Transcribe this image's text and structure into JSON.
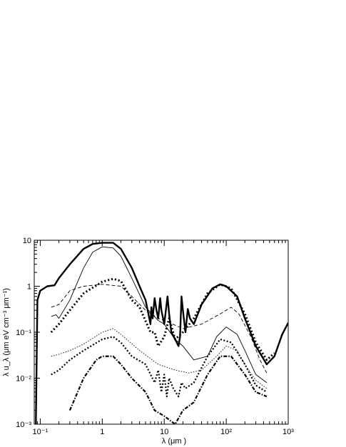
{
  "chart_data": {
    "type": "line",
    "title": "",
    "xlabel": "λ (μm )",
    "ylabel": "λ u_λ (μm eV cm⁻³ μm⁻¹)",
    "xscale": "log",
    "yscale": "log",
    "xlim": [
      0.08,
      1000
    ],
    "ylim": [
      0.001,
      10
    ],
    "grid": false,
    "legend": "none",
    "x_ticks": [
      {
        "value": 0.1,
        "label": "10⁻¹"
      },
      {
        "value": 1,
        "label": "1"
      },
      {
        "value": 10,
        "label": "10"
      },
      {
        "value": 100,
        "label": "10²"
      },
      {
        "value": 1000,
        "label": "10³"
      }
    ],
    "y_ticks": [
      {
        "value": 0.001,
        "label": "10⁻³"
      },
      {
        "value": 0.01,
        "label": "10⁻²"
      },
      {
        "value": 0.1,
        "label": "10⁻¹"
      },
      {
        "value": 1,
        "label": "1"
      },
      {
        "value": 10,
        "label": "10"
      }
    ],
    "series": [
      {
        "style": "thick-solid",
        "points": [
          [
            0.085,
            0.001
          ],
          [
            0.09,
            0.5
          ],
          [
            0.1,
            0.8
          ],
          [
            0.13,
            1.0
          ],
          [
            0.17,
            1.05
          ],
          [
            0.2,
            1.5
          ],
          [
            0.3,
            3.0
          ],
          [
            0.5,
            6.5
          ],
          [
            0.7,
            8.3
          ],
          [
            1.0,
            8.8
          ],
          [
            1.5,
            8.8
          ],
          [
            2.0,
            6.5
          ],
          [
            3.0,
            2.5
          ],
          [
            4.0,
            1.0
          ],
          [
            5.0,
            0.5
          ],
          [
            6.0,
            0.15
          ],
          [
            6.2,
            0.35
          ],
          [
            6.5,
            0.2
          ],
          [
            7.0,
            0.55
          ],
          [
            7.5,
            0.3
          ],
          [
            8.0,
            0.2
          ],
          [
            8.6,
            0.55
          ],
          [
            9.0,
            0.3
          ],
          [
            10.0,
            0.15
          ],
          [
            11.3,
            0.6
          ],
          [
            12.0,
            0.25
          ],
          [
            13.0,
            0.1
          ],
          [
            15.0,
            0.07
          ],
          [
            17.0,
            0.05
          ],
          [
            18.0,
            0.08
          ],
          [
            19.0,
            0.6
          ],
          [
            20.0,
            0.3
          ],
          [
            22.0,
            0.1
          ],
          [
            24.0,
            0.32
          ],
          [
            26.0,
            0.2
          ],
          [
            30.0,
            0.15
          ],
          [
            40.0,
            0.4
          ],
          [
            60.0,
            0.9
          ],
          [
            80.0,
            1.1
          ],
          [
            100.0,
            1.0
          ],
          [
            150.0,
            0.6
          ],
          [
            200.0,
            0.2
          ],
          [
            300.0,
            0.05
          ],
          [
            450.0,
            0.02
          ],
          [
            600.0,
            0.03
          ],
          [
            800.0,
            0.09
          ],
          [
            1000.0,
            0.16
          ]
        ]
      },
      {
        "style": "thin-solid",
        "points": [
          [
            0.15,
            0.22
          ],
          [
            0.18,
            0.24
          ],
          [
            0.2,
            0.2
          ],
          [
            0.3,
            0.5
          ],
          [
            0.5,
            2.5
          ],
          [
            0.7,
            5.5
          ],
          [
            1.0,
            7.2
          ],
          [
            1.5,
            6.8
          ],
          [
            2.0,
            4.5
          ],
          [
            3.0,
            1.5
          ],
          [
            5.0,
            0.35
          ],
          [
            8.0,
            0.18
          ],
          [
            10.0,
            0.15
          ],
          [
            15.0,
            0.07
          ],
          [
            20.0,
            0.05
          ],
          [
            30.0,
            0.025
          ],
          [
            50.0,
            0.03
          ],
          [
            70.0,
            0.08
          ],
          [
            100.0,
            0.13
          ],
          [
            150.0,
            0.09
          ],
          [
            200.0,
            0.04
          ],
          [
            300.0,
            0.012
          ],
          [
            450.0,
            0.008
          ]
        ]
      },
      {
        "style": "thick-dotted",
        "points": [
          [
            0.15,
            0.1
          ],
          [
            0.2,
            0.15
          ],
          [
            0.3,
            0.3
          ],
          [
            0.5,
            0.7
          ],
          [
            1.0,
            1.25
          ],
          [
            1.5,
            1.45
          ],
          [
            2.0,
            1.3
          ],
          [
            3.0,
            0.5
          ],
          [
            4.0,
            0.35
          ],
          [
            6.0,
            0.1
          ],
          [
            7.0,
            0.1
          ],
          [
            8.0,
            0.05
          ],
          [
            10.0,
            0.08
          ],
          [
            12.0,
            0.2
          ],
          [
            15.0,
            0.07
          ],
          [
            20.0,
            0.1
          ],
          [
            30.0,
            0.2
          ],
          [
            50.0,
            0.7
          ],
          [
            80.0,
            1.1
          ],
          [
            120.0,
            0.9
          ],
          [
            200.0,
            0.25
          ],
          [
            300.0,
            0.06
          ],
          [
            450.0,
            0.025
          ],
          [
            600.0,
            0.035
          ]
        ]
      },
      {
        "style": "dashed",
        "points": [
          [
            0.15,
            0.35
          ],
          [
            0.2,
            0.4
          ],
          [
            0.3,
            0.8
          ],
          [
            0.5,
            1.0
          ],
          [
            1.0,
            1.1
          ],
          [
            2.0,
            1.0
          ],
          [
            3.0,
            0.6
          ],
          [
            5.0,
            0.3
          ],
          [
            8.0,
            0.2
          ],
          [
            10.0,
            0.18
          ],
          [
            20.0,
            0.12
          ],
          [
            40.0,
            0.15
          ],
          [
            80.0,
            0.25
          ],
          [
            120.0,
            0.35
          ],
          [
            160.0,
            0.25
          ],
          [
            250.0,
            0.08
          ],
          [
            350.0,
            0.025
          ],
          [
            450.0,
            0.013
          ]
        ]
      },
      {
        "style": "thin-dotted",
        "points": [
          [
            0.15,
            0.03
          ],
          [
            0.2,
            0.033
          ],
          [
            0.3,
            0.04
          ],
          [
            0.5,
            0.055
          ],
          [
            1.0,
            0.1
          ],
          [
            1.5,
            0.12
          ],
          [
            2.0,
            0.09
          ],
          [
            4.0,
            0.04
          ],
          [
            8.0,
            0.02
          ],
          [
            15.0,
            0.015
          ],
          [
            25.0,
            0.013
          ],
          [
            40.0,
            0.015
          ],
          [
            70.0,
            0.03
          ],
          [
            100.0,
            0.05
          ],
          [
            150.0,
            0.04
          ],
          [
            200.0,
            0.02
          ],
          [
            300.0,
            0.009
          ],
          [
            450.0,
            0.006
          ]
        ]
      },
      {
        "style": "medium-dotted",
        "points": [
          [
            0.15,
            0.012
          ],
          [
            0.2,
            0.015
          ],
          [
            0.3,
            0.025
          ],
          [
            0.5,
            0.04
          ],
          [
            1.0,
            0.07
          ],
          [
            1.5,
            0.08
          ],
          [
            2.0,
            0.06
          ],
          [
            3.0,
            0.03
          ],
          [
            5.0,
            0.02
          ],
          [
            7.0,
            0.008
          ],
          [
            8.0,
            0.015
          ],
          [
            9.0,
            0.005
          ],
          [
            10.0,
            0.012
          ],
          [
            11.0,
            0.004
          ],
          [
            12.0,
            0.01
          ],
          [
            14.0,
            0.006
          ],
          [
            17.0,
            0.004
          ],
          [
            19.0,
            0.008
          ],
          [
            22.0,
            0.006
          ],
          [
            30.0,
            0.008
          ],
          [
            50.0,
            0.03
          ],
          [
            80.0,
            0.07
          ],
          [
            120.0,
            0.06
          ],
          [
            200.0,
            0.02
          ],
          [
            300.0,
            0.007
          ],
          [
            450.0,
            0.005
          ]
        ]
      },
      {
        "style": "dash-dot",
        "points": [
          [
            0.3,
            0.002
          ],
          [
            0.5,
            0.01
          ],
          [
            0.8,
            0.025
          ],
          [
            1.0,
            0.03
          ],
          [
            1.5,
            0.03
          ],
          [
            2.0,
            0.02
          ],
          [
            3.0,
            0.01
          ],
          [
            5.0,
            0.005
          ],
          [
            7.0,
            0.002
          ],
          [
            10.0,
            0.0015
          ],
          [
            15.0,
            0.001
          ],
          [
            20.0,
            0.002
          ],
          [
            30.0,
            0.003
          ],
          [
            50.0,
            0.012
          ],
          [
            80.0,
            0.03
          ],
          [
            120.0,
            0.03
          ],
          [
            200.0,
            0.012
          ],
          [
            300.0,
            0.005
          ],
          [
            450.0,
            0.004
          ]
        ]
      }
    ]
  }
}
